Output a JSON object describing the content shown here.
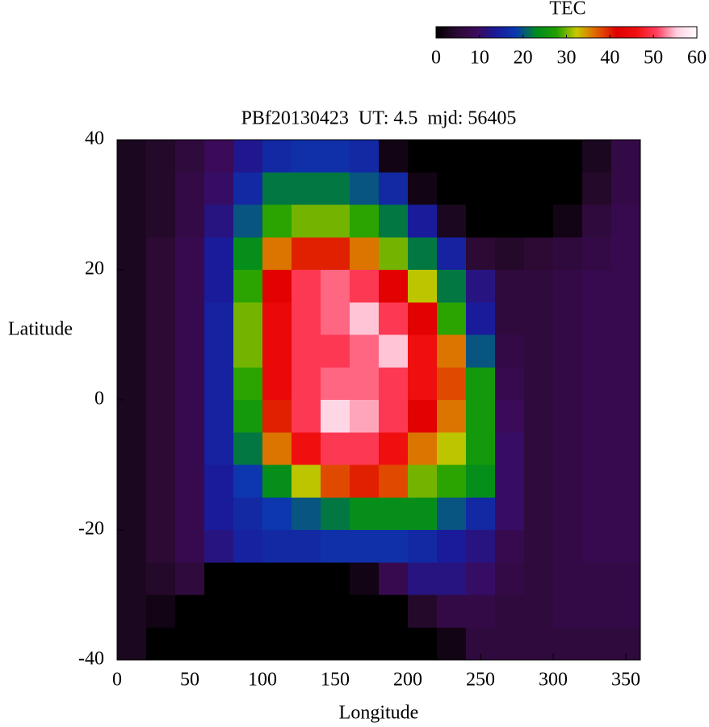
{
  "chart_data": {
    "type": "heatmap",
    "title": "PBf20130423  UT: 4.5  mjd: 56405",
    "x_label": "Longitude",
    "y_label": "Latitude",
    "xlim": [
      0,
      360
    ],
    "xticks": [
      0,
      50,
      100,
      150,
      200,
      250,
      300,
      350
    ],
    "ylim": [
      -40,
      40
    ],
    "yticks": [
      -40,
      -20,
      0,
      20,
      40
    ],
    "x": [
      10,
      30,
      50,
      70,
      90,
      110,
      130,
      150,
      170,
      190,
      210,
      230,
      250,
      270,
      290,
      310,
      330,
      350
    ],
    "y": [
      37.5,
      32.5,
      27.5,
      22.5,
      17.5,
      12.5,
      7.5,
      2.5,
      -2.5,
      -7.5,
      -12.5,
      -17.5,
      -22.5,
      -27.5,
      -32.5,
      -37.5
    ],
    "values": [
      [
        3,
        4,
        6,
        9,
        13,
        16,
        17,
        17,
        16,
        2,
        0,
        0,
        0,
        0,
        0,
        0,
        3,
        7
      ],
      [
        3,
        4,
        7,
        10,
        16,
        22,
        22,
        22,
        20,
        16,
        2,
        0,
        0,
        0,
        0,
        0,
        4,
        7
      ],
      [
        3,
        4,
        7,
        12,
        20,
        28,
        30,
        30,
        28,
        22,
        14,
        3,
        0,
        0,
        0,
        2,
        6,
        8
      ],
      [
        3,
        5,
        8,
        14,
        24,
        36,
        40,
        40,
        36,
        30,
        22,
        15,
        5,
        4,
        5,
        6,
        7,
        8
      ],
      [
        3,
        5,
        8,
        14,
        28,
        42,
        50,
        52,
        50,
        42,
        32,
        22,
        12,
        6,
        6,
        7,
        8,
        8
      ],
      [
        3,
        5,
        8,
        15,
        30,
        44,
        50,
        52,
        55,
        50,
        42,
        28,
        14,
        6,
        6,
        7,
        8,
        8
      ],
      [
        3,
        5,
        8,
        15,
        30,
        44,
        50,
        50,
        52,
        55,
        46,
        36,
        20,
        7,
        6,
        7,
        8,
        8
      ],
      [
        3,
        5,
        8,
        15,
        28,
        44,
        50,
        52,
        52,
        50,
        46,
        38,
        26,
        8,
        6,
        7,
        8,
        8
      ],
      [
        3,
        5,
        8,
        15,
        26,
        40,
        50,
        56,
        54,
        50,
        42,
        36,
        26,
        9,
        6,
        7,
        8,
        8
      ],
      [
        3,
        5,
        8,
        15,
        22,
        36,
        46,
        50,
        50,
        46,
        36,
        32,
        26,
        10,
        6,
        7,
        8,
        8
      ],
      [
        3,
        5,
        8,
        14,
        18,
        24,
        32,
        38,
        40,
        38,
        30,
        28,
        24,
        10,
        6,
        7,
        8,
        8
      ],
      [
        3,
        5,
        8,
        14,
        16,
        18,
        20,
        22,
        24,
        24,
        24,
        20,
        16,
        10,
        6,
        7,
        8,
        8
      ],
      [
        3,
        5,
        8,
        12,
        15,
        16,
        16,
        17,
        17,
        17,
        16,
        14,
        12,
        8,
        6,
        7,
        8,
        8
      ],
      [
        3,
        4,
        6,
        0,
        0,
        0,
        0,
        0,
        2,
        8,
        12,
        12,
        10,
        7,
        6,
        7,
        7,
        7
      ],
      [
        3,
        2,
        0,
        0,
        0,
        0,
        0,
        0,
        0,
        0,
        4,
        7,
        7,
        6,
        6,
        7,
        7,
        7
      ],
      [
        3,
        0,
        0,
        0,
        0,
        0,
        0,
        0,
        0,
        0,
        0,
        2,
        6,
        6,
        6,
        6,
        6,
        6
      ]
    ],
    "colorbar": {
      "label": "TEC",
      "lim": [
        0,
        60
      ],
      "ticks": [
        0,
        10,
        20,
        30,
        40,
        50,
        60
      ],
      "colors": [
        "#000000",
        "#2a0a30",
        "#3c0a5a",
        "#1a1a9a",
        "#0a3ab0",
        "#008a20",
        "#20a000",
        "#c8c800",
        "#e06000",
        "#e00000",
        "#f01010",
        "#ff4060",
        "#ffd0e0",
        "#ffffff"
      ]
    }
  }
}
